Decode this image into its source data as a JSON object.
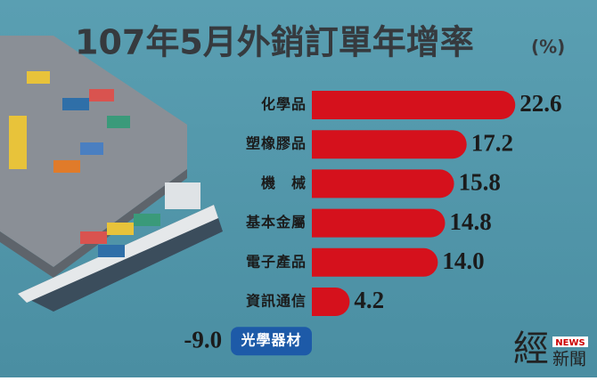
{
  "chart_data": {
    "type": "bar",
    "orientation": "horizontal",
    "title": "107年5月外銷訂單年增率",
    "unit": "(%)",
    "categories": [
      "化學品",
      "塑橡膠品",
      "機　械",
      "基本金屬",
      "電子產品",
      "資訊通信",
      "光學器材"
    ],
    "values": [
      22.6,
      17.2,
      15.8,
      14.8,
      14.0,
      4.2,
      -9.0
    ],
    "value_labels": [
      "22.6",
      "17.2",
      "15.8",
      "14.8",
      "14.0",
      "4.2",
      "-9.0"
    ],
    "color": "#d5111c",
    "negative_color": "#1d5aa8"
  },
  "logo": {
    "mark": "經",
    "badge": "NEWS",
    "text": "新聞"
  }
}
